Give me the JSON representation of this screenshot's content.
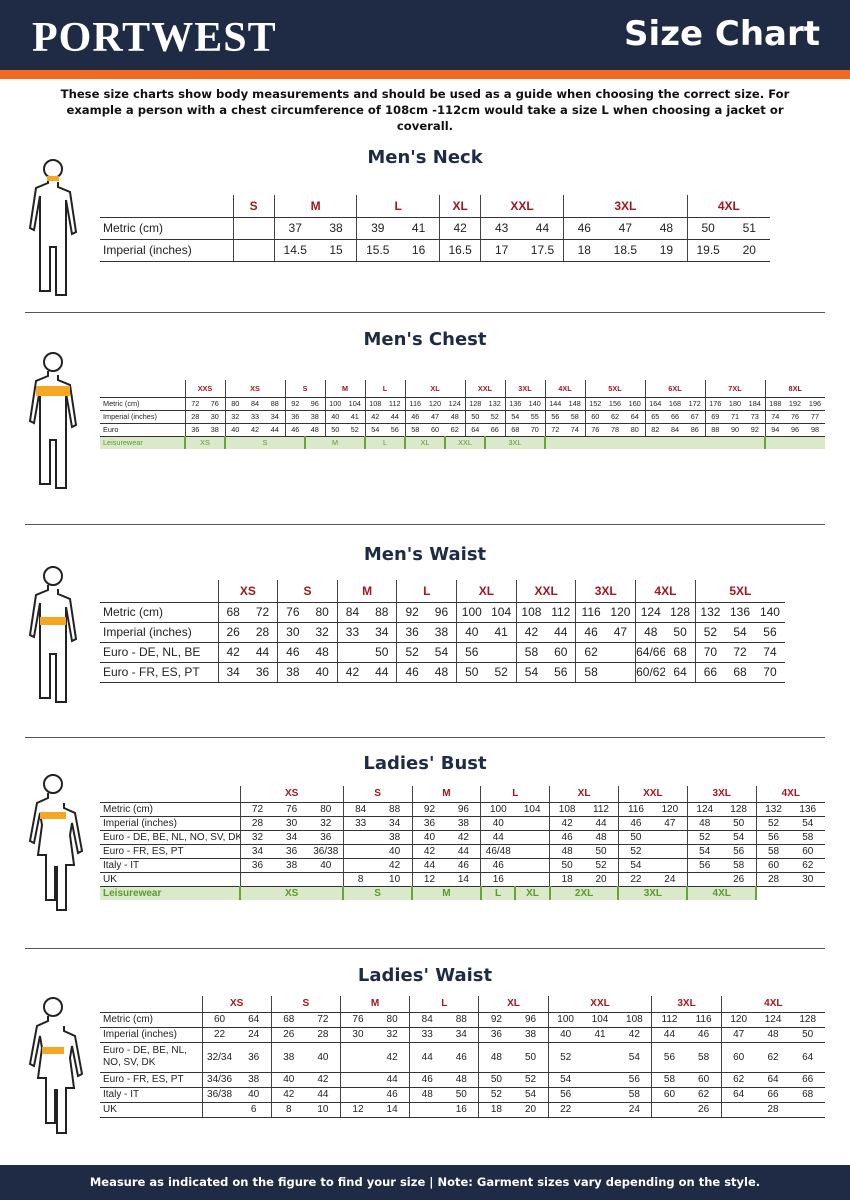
{
  "header": {
    "logo": "PORTWEST",
    "title": "Size Chart",
    "colors": {
      "navy": "#1f2a44",
      "orange": "#f26a21",
      "size_red": "#a31621",
      "leisure_green": "#5c9a2e"
    }
  },
  "intro": "These size charts show body measurements and should be used as a guide when choosing the correct size. For example a person with a chest circumference of 108cm -112cm would take a size L when choosing a jacket or coverall.",
  "footer": "Measure as indicated on the figure to find your size  |  Note: Garment sizes vary depending on the style.",
  "tables": [
    {
      "title": "Men's Neck",
      "figure": "male-figure-neck",
      "sizes": [
        {
          "label": "S",
          "span": 1
        },
        {
          "label": "M",
          "span": 2
        },
        {
          "label": "L",
          "span": 2
        },
        {
          "label": "XL",
          "span": 1
        },
        {
          "label": "XXL",
          "span": 2
        },
        {
          "label": "3XL",
          "span": 3
        },
        {
          "label": "4XL",
          "span": 2
        }
      ],
      "rows": [
        {
          "label": "Metric  (cm)",
          "cells": [
            "",
            "37",
            "38",
            "39",
            "41",
            "42",
            "43",
            "44",
            "46",
            "47",
            "48",
            "50",
            "51"
          ]
        },
        {
          "label": "Imperial (inches)",
          "cells": [
            "",
            "14.5",
            "15",
            "15.5",
            "16",
            "16.5",
            "17",
            "17.5",
            "18",
            "18.5",
            "19",
            "19.5",
            "20"
          ]
        }
      ]
    },
    {
      "title": "Men's Chest",
      "figure": "male-figure-chest",
      "sizes": [
        {
          "label": "XXS",
          "span": 2
        },
        {
          "label": "XS",
          "span": 3
        },
        {
          "label": "S",
          "span": 2
        },
        {
          "label": "M",
          "span": 2
        },
        {
          "label": "L",
          "span": 2
        },
        {
          "label": "XL",
          "span": 3
        },
        {
          "label": "XXL",
          "span": 2
        },
        {
          "label": "3XL",
          "span": 2
        },
        {
          "label": "4XL",
          "span": 2
        },
        {
          "label": "5XL",
          "span": 3
        },
        {
          "label": "6XL",
          "span": 3
        },
        {
          "label": "7XL",
          "span": 3
        },
        {
          "label": "8XL",
          "span": 3
        }
      ],
      "rows": [
        {
          "label": "Metric (cm)",
          "cells": [
            "72",
            "76",
            "80",
            "84",
            "88",
            "92",
            "96",
            "100",
            "104",
            "108",
            "112",
            "116",
            "120",
            "124",
            "128",
            "132",
            "136",
            "140",
            "144",
            "148",
            "152",
            "156",
            "160",
            "164",
            "168",
            "172",
            "176",
            "180",
            "184",
            "188",
            "192",
            "196"
          ]
        },
        {
          "label": "Imperial (inches)",
          "cells": [
            "28",
            "30",
            "32",
            "33",
            "34",
            "36",
            "38",
            "40",
            "41",
            "42",
            "44",
            "46",
            "47",
            "48",
            "50",
            "52",
            "54",
            "55",
            "56",
            "58",
            "60",
            "62",
            "64",
            "65",
            "66",
            "67",
            "69",
            "71",
            "73",
            "74",
            "76",
            "77"
          ]
        },
        {
          "label": "Euro",
          "cells": [
            "36",
            "38",
            "40",
            "42",
            "44",
            "46",
            "48",
            "50",
            "52",
            "54",
            "56",
            "58",
            "60",
            "62",
            "64",
            "66",
            "68",
            "70",
            "72",
            "74",
            "76",
            "78",
            "80",
            "82",
            "84",
            "86",
            "88",
            "90",
            "92",
            "94",
            "96",
            "98"
          ]
        }
      ],
      "leisurewear": {
        "label": "Leisurewear",
        "groups": [
          {
            "label": "XS",
            "span": 2
          },
          {
            "label": "S",
            "span": 4
          },
          {
            "label": "M",
            "span": 3
          },
          {
            "label": "L",
            "span": 2
          },
          {
            "label": "XL",
            "span": 2
          },
          {
            "label": "XXL",
            "span": 2
          },
          {
            "label": "3XL",
            "span": 3
          },
          {
            "label": "",
            "span": 11
          },
          {
            "label": "",
            "span": 3
          }
        ]
      }
    },
    {
      "title": "Men's Waist",
      "figure": "male-figure-waist",
      "sizes": [
        {
          "label": "XS",
          "span": 2
        },
        {
          "label": "S",
          "span": 2
        },
        {
          "label": "M",
          "span": 2
        },
        {
          "label": "L",
          "span": 2
        },
        {
          "label": "XL",
          "span": 2
        },
        {
          "label": "XXL",
          "span": 2
        },
        {
          "label": "3XL",
          "span": 2
        },
        {
          "label": "4XL",
          "span": 2
        },
        {
          "label": "5XL",
          "span": 3
        }
      ],
      "rows": [
        {
          "label": "Metric  (cm)",
          "cells": [
            "68",
            "72",
            "76",
            "80",
            "84",
            "88",
            "92",
            "96",
            "100",
            "104",
            "108",
            "112",
            "116",
            "120",
            "124",
            "128",
            "132",
            "136",
            "140"
          ]
        },
        {
          "label": "Imperial (inches)",
          "cells": [
            "26",
            "28",
            "30",
            "32",
            "33",
            "34",
            "36",
            "38",
            "40",
            "41",
            "42",
            "44",
            "46",
            "47",
            "48",
            "50",
            "52",
            "54",
            "56"
          ]
        },
        {
          "label": "Euro - DE, NL, BE",
          "cells": [
            "42",
            "44",
            "46",
            "48",
            "",
            "50",
            "52",
            "54",
            "56",
            "",
            "58",
            "60",
            "62",
            "",
            "64/66",
            "68",
            "70",
            "72",
            "74"
          ]
        },
        {
          "label": "Euro - FR, ES, PT",
          "cells": [
            "34",
            "36",
            "38",
            "40",
            "42",
            "44",
            "46",
            "48",
            "50",
            "52",
            "54",
            "56",
            "58",
            "",
            "60/62",
            "64",
            "66",
            "68",
            "70"
          ]
        }
      ]
    },
    {
      "title": "Ladies' Bust",
      "figure": "female-figure-bust",
      "sizes": [
        {
          "label": "XS",
          "span": 3
        },
        {
          "label": "S",
          "span": 2
        },
        {
          "label": "M",
          "span": 2
        },
        {
          "label": "L",
          "span": 2
        },
        {
          "label": "XL",
          "span": 2
        },
        {
          "label": "XXL",
          "span": 2
        },
        {
          "label": "3XL",
          "span": 2
        },
        {
          "label": "4XL",
          "span": 2
        }
      ],
      "rows": [
        {
          "label": "Metric  (cm)",
          "cells": [
            "72",
            "76",
            "80",
            "84",
            "88",
            "92",
            "96",
            "100",
            "104",
            "108",
            "112",
            "116",
            "120",
            "124",
            "128",
            "132",
            "136"
          ]
        },
        {
          "label": "Imperial (inches)",
          "cells": [
            "28",
            "30",
            "32",
            "33",
            "34",
            "36",
            "38",
            "40",
            "",
            "42",
            "44",
            "46",
            "47",
            "48",
            "50",
            "52",
            "54"
          ]
        },
        {
          "label": "Euro -  DE, BE, NL, NO, SV, DK",
          "cells": [
            "32",
            "34",
            "36",
            "",
            "38",
            "40",
            "42",
            "44",
            "",
            "46",
            "48",
            "50",
            "",
            "52",
            "54",
            "56",
            "58"
          ]
        },
        {
          "label": "Euro - FR, ES, PT",
          "cells": [
            "34",
            "36",
            "36/38",
            "",
            "40",
            "42",
            "44",
            "46/48",
            "",
            "48",
            "50",
            "52",
            "",
            "54",
            "56",
            "58",
            "60"
          ]
        },
        {
          "label": "Italy - IT",
          "cells": [
            "36",
            "38",
            "40",
            "",
            "42",
            "44",
            "46",
            "46",
            "",
            "50",
            "52",
            "54",
            "",
            "56",
            "58",
            "60",
            "62"
          ]
        },
        {
          "label": "UK",
          "cells": [
            "",
            "",
            "",
            "8",
            "10",
            "12",
            "14",
            "16",
            "",
            "18",
            "20",
            "22",
            "24",
            "",
            "26",
            "28",
            "30"
          ]
        }
      ],
      "leisurewear": {
        "label": "Leisurewear",
        "groups": [
          {
            "label": "XS",
            "span": 3
          },
          {
            "label": "S",
            "span": 2
          },
          {
            "label": "M",
            "span": 2
          },
          {
            "label": "L",
            "span": 1
          },
          {
            "label": "XL",
            "span": 1
          },
          {
            "label": "2XL",
            "span": 2
          },
          {
            "label": "3XL",
            "span": 2
          },
          {
            "label": "4XL",
            "span": 2
          },
          {
            "label": "",
            "span": 2,
            "empty": true
          }
        ]
      }
    },
    {
      "title": "Ladies' Waist",
      "figure": "female-figure-waist",
      "sizes": [
        {
          "label": "XS",
          "span": 2
        },
        {
          "label": "S",
          "span": 2
        },
        {
          "label": "M",
          "span": 2
        },
        {
          "label": "L",
          "span": 2
        },
        {
          "label": "XL",
          "span": 2
        },
        {
          "label": "XXL",
          "span": 3
        },
        {
          "label": "3XL",
          "span": 2
        },
        {
          "label": "4XL",
          "span": 3
        }
      ],
      "rows": [
        {
          "label": "Metric  (cm)",
          "cells": [
            "60",
            "64",
            "68",
            "72",
            "76",
            "80",
            "84",
            "88",
            "92",
            "96",
            "100",
            "104",
            "108",
            "112",
            "116",
            "120",
            "124",
            "128"
          ]
        },
        {
          "label": "Imperial (inches)",
          "cells": [
            "22",
            "24",
            "26",
            "28",
            "30",
            "32",
            "33",
            "34",
            "36",
            "38",
            "40",
            "41",
            "42",
            "44",
            "46",
            "47",
            "48",
            "50"
          ]
        },
        {
          "label": "Euro - DE, BE, NL, NO, SV, DK",
          "cells": [
            "32/34",
            "36",
            "38",
            "40",
            "",
            "42",
            "44",
            "46",
            "48",
            "50",
            "52",
            "",
            "54",
            "56",
            "58",
            "60",
            "62",
            "64"
          ]
        },
        {
          "label": "Euro - FR, ES, PT",
          "cells": [
            "34/36",
            "38",
            "40",
            "42",
            "",
            "44",
            "46",
            "48",
            "50",
            "52",
            "54",
            "",
            "56",
            "58",
            "60",
            "62",
            "64",
            "66"
          ]
        },
        {
          "label": "Italy - IT",
          "cells": [
            "36/38",
            "40",
            "42",
            "44",
            "",
            "46",
            "48",
            "50",
            "52",
            "54",
            "56",
            "",
            "58",
            "60",
            "62",
            "64",
            "66",
            "68"
          ]
        },
        {
          "label": "UK",
          "cells": [
            "",
            "6",
            "8",
            "10",
            "12",
            "14",
            "",
            "16",
            "18",
            "20",
            "22",
            "",
            "24",
            "",
            "26",
            "",
            "28",
            ""
          ]
        }
      ]
    }
  ]
}
